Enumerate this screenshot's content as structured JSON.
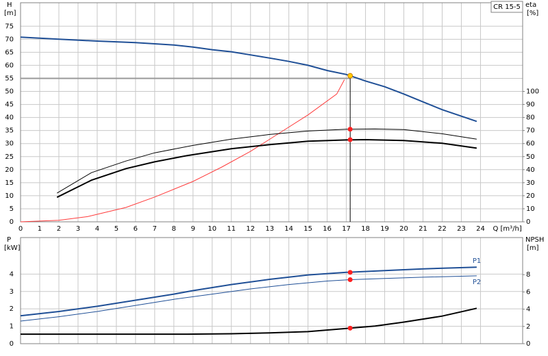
{
  "chart_data": [
    {
      "type": "line",
      "title": "CR 15-5",
      "xlabel": "Q [m³/h]",
      "ylabel": "H",
      "yunit": "[m]",
      "y2label": "eta",
      "y2unit": "[%]",
      "xlim": [
        0,
        26.2
      ],
      "xticks": [
        0,
        1,
        2,
        3,
        4,
        5,
        6,
        7,
        8,
        9,
        10,
        11,
        12,
        13,
        14,
        15,
        16,
        17,
        18,
        19,
        20,
        21,
        22,
        23,
        24
      ],
      "ylim": [
        0,
        84
      ],
      "yticks": [
        0,
        5,
        10,
        15,
        20,
        25,
        30,
        35,
        40,
        45,
        50,
        55,
        60,
        65,
        70,
        75
      ],
      "y2lim": [
        0,
        168
      ],
      "y2ticks": [
        0,
        10,
        20,
        30,
        40,
        50,
        60,
        70,
        80,
        90,
        100
      ],
      "grid": true,
      "series": [
        {
          "color": "#999999",
          "width": 2,
          "x": [
            0,
            17.2
          ],
          "values": [
            55,
            55
          ]
        },
        {
          "color": "#000000",
          "width": 1,
          "x": [
            17.2,
            17.2
          ],
          "values": [
            0,
            56
          ]
        },
        {
          "color": "#ff3b3b",
          "width": 1,
          "x": [
            0,
            2,
            3.5,
            5.5,
            7,
            9,
            10.5,
            12,
            13.5,
            15,
            16.5,
            16.9
          ],
          "values": [
            0,
            0.6,
            2,
            5.5,
            9.5,
            15.5,
            21,
            27,
            34,
            41,
            49,
            54.5
          ]
        },
        {
          "color": "#1f4f96",
          "width": 2,
          "x": [
            0,
            2,
            4,
            6,
            8,
            9,
            10,
            11,
            12,
            13,
            14,
            15,
            16,
            17,
            18,
            19,
            20,
            21,
            22,
            23,
            23.8
          ],
          "values": [
            70.8,
            70,
            69.3,
            68.7,
            67.8,
            67,
            66,
            65.2,
            64,
            62.8,
            61.5,
            60,
            58,
            56.5,
            54,
            51.8,
            49,
            46,
            43,
            40.5,
            38.5
          ]
        },
        {
          "color": "#000000",
          "width": 1,
          "axis": "y2",
          "x": [
            1.9,
            3.7,
            5.5,
            7,
            9,
            11,
            13,
            15,
            17,
            18.5,
            20,
            22,
            23.8
          ],
          "values": [
            22,
            37.7,
            46.6,
            52.9,
            58.6,
            63.4,
            67,
            69.6,
            71,
            71.2,
            70.7,
            67.5,
            63.4
          ]
        },
        {
          "color": "#000000",
          "width": 2,
          "axis": "y2",
          "x": [
            1.9,
            3.7,
            5.5,
            7,
            8.7,
            11,
            13,
            15,
            17,
            18,
            20,
            22,
            23.8
          ],
          "values": [
            18.8,
            31.9,
            40.8,
            46,
            50.8,
            56,
            59.2,
            61.8,
            62.8,
            63,
            62.3,
            60.2,
            56.5
          ]
        },
        {
          "color": "#ff2020",
          "marker": "dot",
          "axis": "y2",
          "x": [
            17.2,
            17.2
          ],
          "values": [
            71,
            63
          ]
        },
        {
          "color": "#ffcc00",
          "marker": "dot",
          "x": [
            17.2
          ],
          "values": [
            56
          ]
        }
      ]
    },
    {
      "type": "line",
      "ylabel": "P",
      "yunit": "[kW]",
      "y2label": "NPSH",
      "y2unit": "[m]",
      "xlim": [
        0,
        26.2
      ],
      "xticks": [
        0,
        1,
        2,
        3,
        4,
        5,
        6,
        7,
        8,
        9,
        10,
        11,
        12,
        13,
        14,
        15,
        16,
        17,
        18,
        19,
        20,
        21,
        22,
        23,
        24
      ],
      "ylim": [
        0,
        6.1
      ],
      "yticks": [
        0,
        1,
        2,
        3,
        4
      ],
      "y2lim": [
        0,
        12.3
      ],
      "y2ticks": [
        0,
        2,
        4,
        6,
        8
      ],
      "grid": true,
      "series": [
        {
          "name": "P1",
          "color": "#1f4f96",
          "width": 2,
          "x": [
            0,
            2,
            4,
            6,
            8,
            9,
            11,
            13,
            15,
            17,
            19,
            21,
            23.8
          ],
          "values": [
            1.6,
            1.85,
            2.15,
            2.5,
            2.85,
            3.05,
            3.4,
            3.7,
            3.95,
            4.1,
            4.2,
            4.3,
            4.4
          ]
        },
        {
          "name": "P2",
          "color": "#1f4f96",
          "width": 1,
          "x": [
            0,
            2,
            4,
            6,
            8,
            10,
            12,
            14,
            16,
            17.2,
            19,
            21,
            23.8
          ],
          "values": [
            1.3,
            1.55,
            1.85,
            2.2,
            2.55,
            2.85,
            3.15,
            3.4,
            3.6,
            3.68,
            3.75,
            3.82,
            3.9
          ]
        },
        {
          "color": "#000000",
          "width": 2,
          "axis": "y2",
          "x": [
            0,
            4,
            8.7,
            11,
            13,
            15,
            17.2,
            18.5,
            20,
            22,
            23.8
          ],
          "values": [
            1.1,
            1.1,
            1.1,
            1.15,
            1.25,
            1.4,
            1.8,
            2.05,
            2.5,
            3.2,
            4.1
          ]
        },
        {
          "color": "#ff2020",
          "marker": "dot",
          "x": [
            17.2,
            17.2
          ],
          "values": [
            4.1,
            3.68
          ]
        },
        {
          "color": "#ff2020",
          "marker": "dot",
          "axis": "y2",
          "x": [
            17.2
          ],
          "values": [
            1.8
          ]
        }
      ]
    }
  ]
}
